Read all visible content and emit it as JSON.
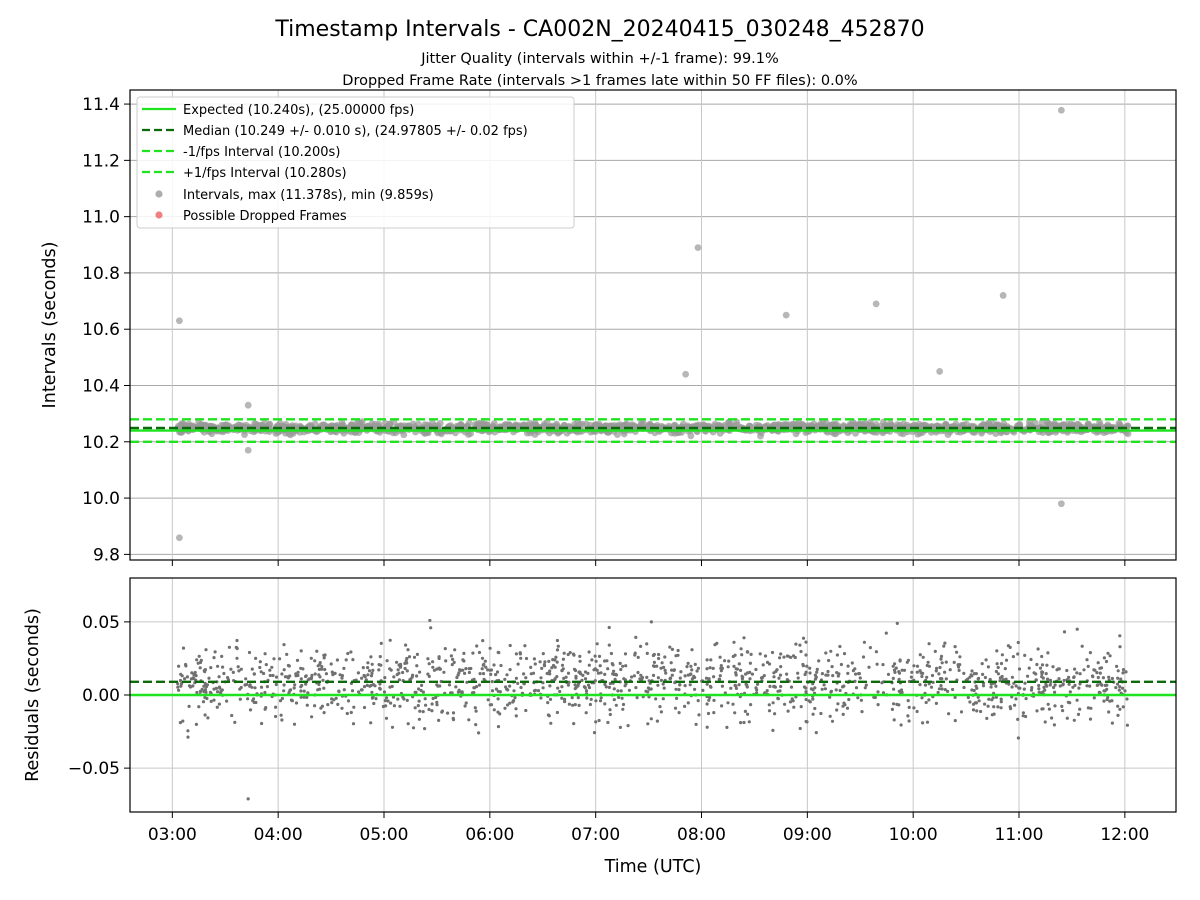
{
  "chart_data": [
    {
      "type": "scatter",
      "title": "Timestamp Intervals - CA002N_20240415_030248_452870",
      "subtitle_lines": [
        "Jitter Quality (intervals within +/-1 frame): 99.1%",
        "Dropped Frame Rate (intervals >1 frames late within 50 FF files): 0.0%"
      ],
      "ylabel": "Intervals (seconds)",
      "ylim": [
        9.78,
        11.45
      ],
      "xlim": [
        "02:36",
        "12:29"
      ],
      "yticks": [
        "9.8",
        "10.0",
        "10.2",
        "10.4",
        "10.6",
        "10.8",
        "11.0",
        "11.2",
        "11.4"
      ],
      "grid": true,
      "legend_position": "top-left",
      "legend": [
        "Expected (10.240s), (25.00000 fps)",
        "Median (10.249 +/- 0.010 s), (24.97805 +/- 0.02 fps)",
        "-1/fps Interval (10.200s)",
        "+1/fps Interval (10.280s)",
        "Intervals, max (11.378s), min (9.859s)",
        "Possible Dropped Frames"
      ],
      "reference_lines": [
        {
          "name": "expected",
          "y": 10.24,
          "style": "solid",
          "color": "#1ee31e"
        },
        {
          "name": "median",
          "y": 10.249,
          "style": "dashed",
          "color": "#0b6b0b"
        },
        {
          "name": "minus-one-frame",
          "y": 10.2,
          "style": "dashed",
          "color": "#1ee31e"
        },
        {
          "name": "plus-one-frame",
          "y": 10.28,
          "style": "dashed",
          "color": "#1ee31e"
        }
      ],
      "point_color": "#999999",
      "dropped_color": "#f06060",
      "outliers": [
        {
          "x": "03:04",
          "y": 10.63
        },
        {
          "x": "03:04",
          "y": 9.859
        },
        {
          "x": "03:43",
          "y": 10.33
        },
        {
          "x": "03:43",
          "y": 10.17
        },
        {
          "x": "07:51",
          "y": 10.44
        },
        {
          "x": "07:58",
          "y": 10.89
        },
        {
          "x": "08:48",
          "y": 10.65
        },
        {
          "x": "09:39",
          "y": 10.69
        },
        {
          "x": "10:15",
          "y": 10.45
        },
        {
          "x": "10:51",
          "y": 10.72
        },
        {
          "x": "11:24",
          "y": 11.378
        },
        {
          "x": "11:24",
          "y": 9.98
        }
      ],
      "bulk": {
        "x_start": "03:03",
        "x_end": "12:02",
        "center": 10.249,
        "spread": 0.01,
        "count": 1400
      }
    },
    {
      "type": "scatter",
      "ylabel": "Residuals (seconds)",
      "xlabel": "Time (UTC)",
      "ylim": [
        -0.08,
        0.08
      ],
      "xlim": [
        "02:36",
        "12:29"
      ],
      "yticks": [
        "−0.05",
        "0.00",
        "0.05"
      ],
      "xticks": [
        "03:00",
        "04:00",
        "05:00",
        "06:00",
        "07:00",
        "08:00",
        "09:00",
        "10:00",
        "11:00",
        "12:00"
      ],
      "grid": true,
      "reference_lines": [
        {
          "name": "zero",
          "y": 0.0,
          "style": "solid",
          "color": "#1ee31e"
        },
        {
          "name": "median-offset",
          "y": 0.009,
          "style": "dashed",
          "color": "#0b6b0b"
        }
      ],
      "point_color": "#707070",
      "outliers": [
        {
          "x": "03:43",
          "y": -0.071
        },
        {
          "x": "05:26",
          "y": 0.051
        },
        {
          "x": "09:51",
          "y": 0.049
        },
        {
          "x": "11:33",
          "y": 0.045
        }
      ],
      "bulk": {
        "x_start": "03:03",
        "x_end": "12:02",
        "center": 0.009,
        "spread": 0.013,
        "count": 1500
      }
    }
  ]
}
